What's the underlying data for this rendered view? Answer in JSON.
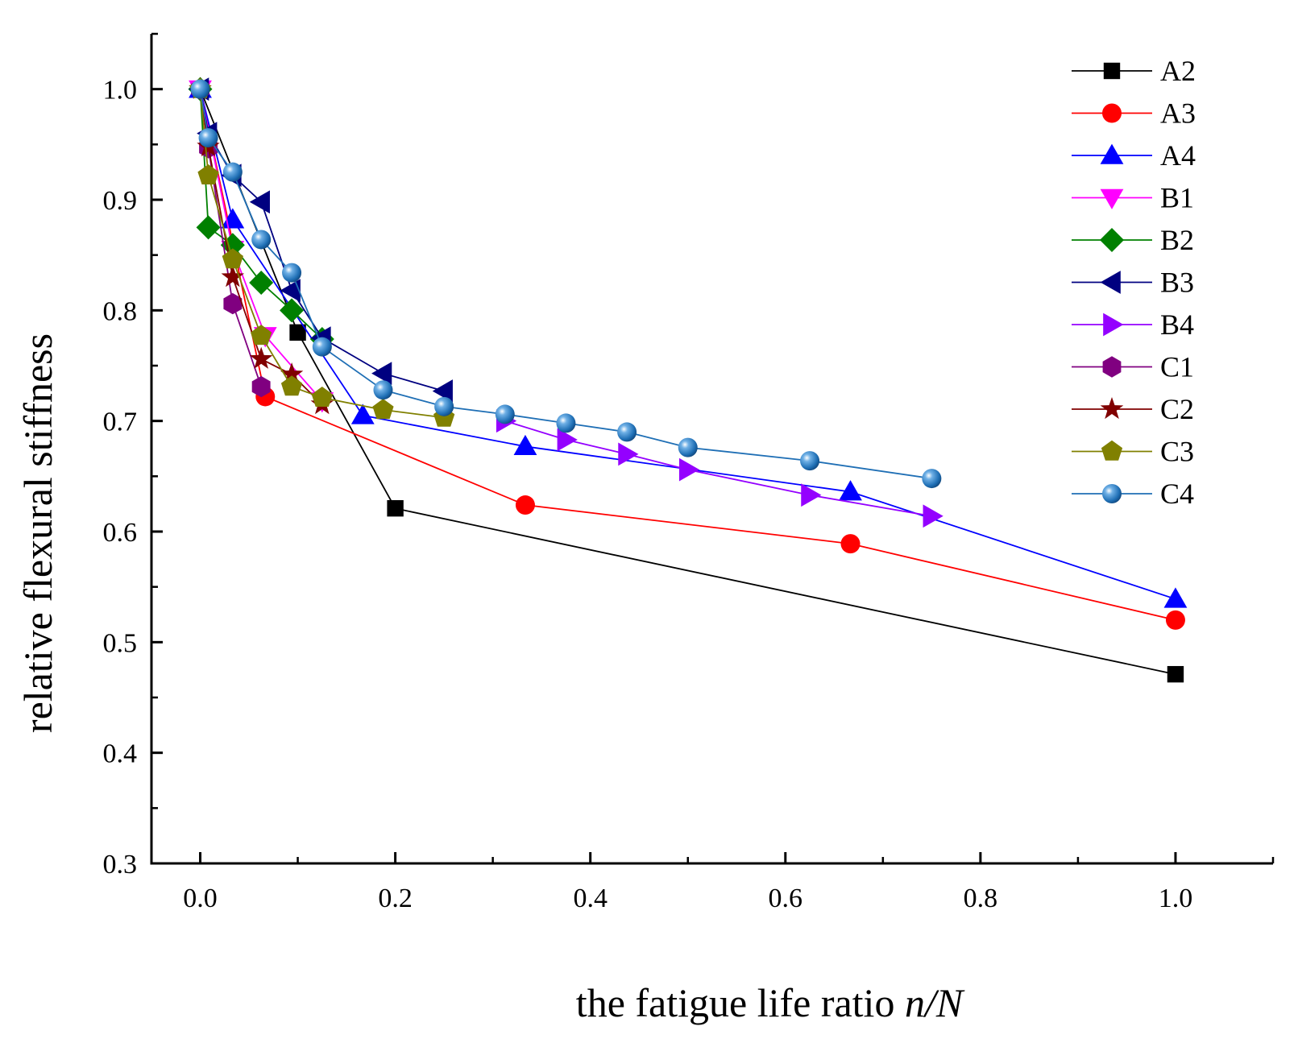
{
  "chart_data": {
    "type": "line",
    "title": "",
    "xlabel_prefix": "the fatigue life ratio ",
    "xlabel_italic": "n/N",
    "ylabel": "relative flexural stiffness",
    "xlim": [
      -0.05,
      1.1
    ],
    "ylim": [
      0.3,
      1.05
    ],
    "xticks": [
      0.0,
      0.2,
      0.4,
      0.6,
      0.8,
      1.0
    ],
    "xtick_labels": [
      "0.0",
      "0.2",
      "0.4",
      "0.6",
      "0.8",
      "1.0"
    ],
    "yticks": [
      0.3,
      0.4,
      0.5,
      0.6,
      0.7,
      0.8,
      0.9,
      1.0
    ],
    "ytick_labels": [
      "0.3",
      "0.4",
      "0.5",
      "0.6",
      "0.7",
      "0.8",
      "0.9",
      "1.0"
    ],
    "legend_position": "top-right",
    "series": [
      {
        "name": "A2",
        "color": "#000000",
        "marker": "square",
        "x": [
          0.0,
          0.1,
          0.2,
          1.0
        ],
        "y": [
          1.0,
          0.78,
          0.621,
          0.471
        ]
      },
      {
        "name": "A3",
        "color": "#ff0000",
        "marker": "circle",
        "x": [
          0.0,
          0.0667,
          0.3333,
          0.6667,
          1.0
        ],
        "y": [
          1.0,
          0.722,
          0.624,
          0.589,
          0.52
        ]
      },
      {
        "name": "A4",
        "color": "#0000ff",
        "marker": "triangle-up",
        "x": [
          0.0,
          0.0333,
          0.1667,
          0.3333,
          0.6667,
          1.0
        ],
        "y": [
          1.0,
          0.882,
          0.705,
          0.677,
          0.636,
          0.539
        ]
      },
      {
        "name": "B1",
        "color": "#ff00ff",
        "marker": "triangle-down",
        "x": [
          0.0,
          0.0333,
          0.0667,
          0.125
        ],
        "y": [
          1.0,
          0.855,
          0.777,
          0.718
        ]
      },
      {
        "name": "B2",
        "color": "#008000",
        "marker": "diamond",
        "x": [
          0.0,
          0.0083,
          0.0333,
          0.0625,
          0.0938,
          0.125
        ],
        "y": [
          1.0,
          0.875,
          0.859,
          0.825,
          0.8,
          0.774
        ]
      },
      {
        "name": "B3",
        "color": "#000080",
        "marker": "triangle-left",
        "x": [
          0.0,
          0.0083,
          0.0333,
          0.0625,
          0.0938,
          0.125,
          0.1875,
          0.25
        ],
        "y": [
          1.0,
          0.96,
          0.922,
          0.898,
          0.818,
          0.775,
          0.743,
          0.727
        ]
      },
      {
        "name": "B4",
        "color": "#9400ff",
        "marker": "triangle-right",
        "x": [
          0.3125,
          0.375,
          0.4375,
          0.5,
          0.625,
          0.75
        ],
        "y": [
          0.7,
          0.683,
          0.67,
          0.656,
          0.633,
          0.614
        ]
      },
      {
        "name": "C1",
        "color": "#800080",
        "marker": "hexagon",
        "x": [
          0.0,
          0.0083,
          0.0333,
          0.0625
        ],
        "y": [
          1.0,
          0.947,
          0.806,
          0.731
        ]
      },
      {
        "name": "C2",
        "color": "#800000",
        "marker": "star",
        "x": [
          0.0,
          0.0083,
          0.0333,
          0.0625,
          0.0938,
          0.125
        ],
        "y": [
          1.0,
          0.948,
          0.83,
          0.756,
          0.742,
          0.715
        ]
      },
      {
        "name": "C3",
        "color": "#808000",
        "marker": "pentagon",
        "x": [
          0.0,
          0.0083,
          0.0333,
          0.0625,
          0.0938,
          0.125,
          0.1875,
          0.25
        ],
        "y": [
          1.0,
          0.922,
          0.846,
          0.777,
          0.731,
          0.721,
          0.71,
          0.703
        ]
      },
      {
        "name": "C4",
        "color": "#1f6fb5",
        "marker": "ball",
        "x": [
          0.0,
          0.0083,
          0.0333,
          0.0625,
          0.0938,
          0.125,
          0.1875,
          0.25,
          0.3125,
          0.375,
          0.4375,
          0.5,
          0.625,
          0.75
        ],
        "y": [
          1.0,
          0.956,
          0.925,
          0.864,
          0.834,
          0.767,
          0.728,
          0.713,
          0.706,
          0.698,
          0.69,
          0.676,
          0.664,
          0.648
        ]
      }
    ]
  }
}
